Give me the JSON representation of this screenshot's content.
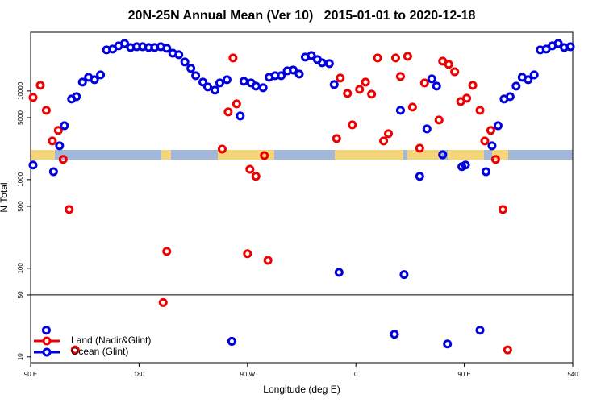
{
  "chart_data": {
    "type": "scatter",
    "title": "20N-25N Annual Mean (Ver 10)   2015-01-01 to 2020-12-18",
    "xlabel": "Longitude (deg E)",
    "ylabel": "N Total",
    "xlim": [
      90,
      540
    ],
    "ylim": [
      8.6,
      46000
    ],
    "yscale": "log",
    "xticks": [
      {
        "value": 90,
        "label": "90 E"
      },
      180,
      {
        "value": 270,
        "label": "90 W"
      },
      {
        "value": 360,
        "label": "0"
      },
      {
        "value": 450,
        "label": "90 E"
      },
      540
    ],
    "yticks": [
      10,
      50,
      100,
      500,
      1000,
      5000,
      10000
    ],
    "hline": 50,
    "legend": "lower left",
    "series": [
      {
        "name": "Land (Nadir&Glint)",
        "color": "#ee0000",
        "x": [
          92,
          98,
          103,
          108,
          113,
          117,
          122,
          127,
          200,
          203,
          249,
          254,
          258,
          261,
          270,
          272,
          277,
          284,
          287,
          344,
          347,
          353,
          357,
          363,
          368,
          373,
          378,
          383,
          387,
          393,
          397,
          403,
          407,
          413,
          417,
          429,
          432,
          437,
          442,
          447,
          452,
          457,
          463,
          467,
          472,
          476,
          482,
          486
        ],
        "y": [
          8450,
          11590,
          6050,
          2730,
          3590,
          1690,
          461,
          12,
          41,
          155,
          2210,
          5810,
          23600,
          7160,
          146,
          1310,
          1090,
          1870,
          123,
          2910,
          13970,
          9400,
          4150,
          10420,
          12590,
          9200,
          23600,
          2730,
          3300,
          23600,
          14580,
          24600,
          6580,
          2260,
          12330,
          4710,
          21700,
          19950,
          16500,
          7620,
          8280,
          11590,
          6050,
          2730,
          3590,
          1690,
          461,
          12
        ]
      },
      {
        "name": "Ocean (Glint)",
        "color": "#0000dd",
        "x": [
          92,
          103,
          109,
          114,
          118,
          124,
          128,
          133,
          138,
          143,
          148,
          153,
          158,
          163,
          168,
          173,
          178,
          183,
          188,
          193,
          198,
          203,
          208,
          213,
          218,
          223,
          227,
          233,
          237,
          243,
          247,
          253,
          257,
          264,
          267,
          273,
          277,
          283,
          288,
          293,
          298,
          303,
          308,
          313,
          318,
          323,
          328,
          332,
          338,
          342,
          346,
          392,
          397,
          400,
          413,
          419,
          423,
          427,
          432,
          436,
          448,
          451,
          463,
          468,
          473,
          478,
          483,
          488,
          493,
          498,
          503,
          508,
          513,
          518,
          523,
          528,
          533,
          538
        ],
        "y": [
          1460,
          20,
          1230,
          2410,
          4060,
          8110,
          8630,
          12590,
          14290,
          13400,
          15200,
          29100,
          29700,
          32300,
          34360,
          30970,
          31600,
          31600,
          30970,
          30970,
          31600,
          30340,
          26700,
          25650,
          21250,
          18000,
          14890,
          12590,
          11100,
          10210,
          12330,
          13400,
          15,
          5230,
          12850,
          12330,
          11350,
          10870,
          14290,
          14890,
          14890,
          16870,
          17220,
          15520,
          24100,
          25120,
          22650,
          20800,
          20370,
          11830,
          90,
          18,
          6050,
          85,
          1090,
          3740,
          13680,
          11350,
          1910,
          14,
          1400,
          1460,
          20,
          1230,
          2410,
          4060,
          8110,
          8630,
          11350,
          14290,
          13400,
          15200,
          29100,
          29700,
          32300,
          34360,
          30970,
          31600
        ]
      }
    ]
  }
}
